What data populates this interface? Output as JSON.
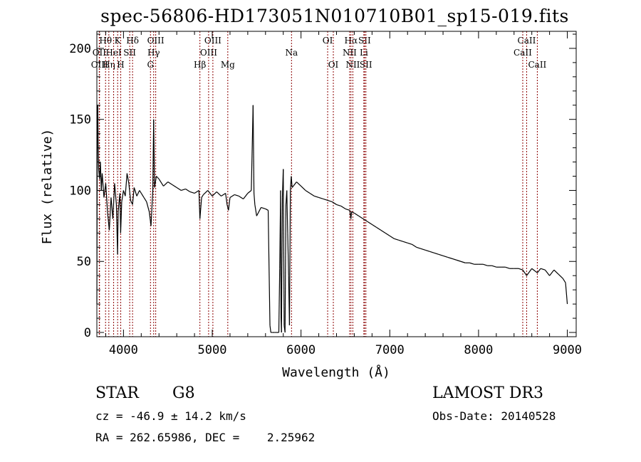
{
  "chart_data": {
    "type": "line",
    "title": "spec-56806-HD173051N010710B01_sp15-019.fits",
    "xlabel": "Wavelength (Å)",
    "ylabel": "Flux (relative)",
    "xlim": [
      3700,
      9100
    ],
    "ylim": [
      -3,
      212
    ],
    "xticks": [
      4000,
      5000,
      6000,
      7000,
      8000,
      9000
    ],
    "yticks": [
      0,
      50,
      100,
      150,
      200
    ],
    "xtick_labels": [
      "4000",
      "5000",
      "6000",
      "7000",
      "8000",
      "9000"
    ],
    "ytick_labels": [
      "0",
      "50",
      "100",
      "150",
      "200"
    ],
    "series": [
      {
        "name": "flux",
        "x": [
          3700,
          3705,
          3710,
          3715,
          3720,
          3730,
          3740,
          3750,
          3760,
          3780,
          3800,
          3820,
          3840,
          3860,
          3880,
          3900,
          3920,
          3933,
          3940,
          3960,
          3968,
          3980,
          4000,
          4020,
          4040,
          4060,
          4080,
          4102,
          4120,
          4150,
          4180,
          4200,
          4230,
          4260,
          4290,
          4310,
          4330,
          4340,
          4350,
          4370,
          4400,
          4450,
          4500,
          4550,
          4600,
          4650,
          4700,
          4750,
          4800,
          4850,
          4861,
          4880,
          4900,
          4950,
          5000,
          5050,
          5100,
          5150,
          5167,
          5183,
          5200,
          5250,
          5300,
          5350,
          5400,
          5440,
          5460,
          5470,
          5480,
          5500,
          5550,
          5600,
          5630,
          5650,
          5660,
          5670,
          5680,
          5700,
          5720,
          5750,
          5760,
          5770,
          5775,
          5780,
          5790,
          5800,
          5810,
          5820,
          5830,
          5840,
          5850,
          5860,
          5870,
          5880,
          5890,
          5900,
          5950,
          6000,
          6050,
          6100,
          6150,
          6200,
          6250,
          6300,
          6350,
          6400,
          6450,
          6500,
          6550,
          6562,
          6570,
          6600,
          6650,
          6700,
          6750,
          6800,
          6850,
          6900,
          6950,
          7000,
          7050,
          7100,
          7150,
          7200,
          7250,
          7300,
          7350,
          7400,
          7450,
          7500,
          7550,
          7600,
          7650,
          7700,
          7750,
          7800,
          7850,
          7900,
          7950,
          8000,
          8050,
          8100,
          8150,
          8200,
          8250,
          8300,
          8350,
          8400,
          8450,
          8498,
          8542,
          8600,
          8662,
          8700,
          8750,
          8800,
          8850,
          8900,
          8950,
          8980,
          9000
        ],
        "values": [
          20,
          150,
          160,
          130,
          115,
          108,
          120,
          100,
          112,
          95,
          105,
          85,
          72,
          95,
          80,
          105,
          90,
          55,
          85,
          98,
          70,
          92,
          100,
          96,
          112,
          105,
          93,
          90,
          102,
          96,
          100,
          98,
          95,
          92,
          85,
          75,
          100,
          150,
          102,
          110,
          108,
          103,
          106,
          104,
          102,
          100,
          101,
          99,
          98,
          100,
          80,
          95,
          97,
          100,
          96,
          99,
          96,
          98,
          90,
          86,
          95,
          97,
          96,
          94,
          98,
          100,
          160,
          98,
          90,
          82,
          88,
          87,
          86,
          5,
          0,
          0,
          0,
          0,
          0,
          0,
          45,
          100,
          10,
          0,
          95,
          115,
          5,
          0,
          90,
          100,
          70,
          40,
          5,
          100,
          110,
          102,
          106,
          103,
          100,
          98,
          96,
          95,
          94,
          93,
          92,
          90,
          89,
          87,
          86,
          80,
          85,
          84,
          82,
          80,
          78,
          76,
          74,
          72,
          70,
          68,
          66,
          65,
          64,
          63,
          62,
          60,
          59,
          58,
          57,
          56,
          55,
          54,
          53,
          52,
          51,
          50,
          49,
          49,
          48,
          48,
          48,
          47,
          47,
          46,
          46,
          46,
          45,
          45,
          45,
          44,
          40,
          45,
          42,
          45,
          44,
          40,
          44,
          41,
          38,
          35,
          20
        ]
      }
    ],
    "lines": [
      {
        "label": "Hθ",
        "x": 3798,
        "row": 0
      },
      {
        "label": "OII",
        "x": 3727,
        "row": 1
      },
      {
        "label": "OIII",
        "x": 3730,
        "row": 2
      },
      {
        "label": "Hη",
        "x": 3835,
        "row": 2
      },
      {
        "label": "HeI",
        "x": 3889,
        "row": 1
      },
      {
        "label": "K",
        "x": 3934,
        "row": 0
      },
      {
        "label": "H",
        "x": 3969,
        "row": 2
      },
      {
        "label": "SII",
        "x": 4070,
        "row": 1
      },
      {
        "label": "Hδ",
        "x": 4102,
        "row": 0
      },
      {
        "label": "OIII",
        "x": 4363,
        "row": 0
      },
      {
        "label": "Hγ",
        "x": 4340,
        "row": 1
      },
      {
        "label": "G",
        "x": 4304,
        "row": 2
      },
      {
        "label": "OIII",
        "x": 5007,
        "row": 0
      },
      {
        "label": "OIII",
        "x": 4959,
        "row": 1
      },
      {
        "label": "Hβ",
        "x": 4861,
        "row": 2
      },
      {
        "label": "Mg",
        "x": 5175,
        "row": 2
      },
      {
        "label": "Na",
        "x": 5893,
        "row": 1
      },
      {
        "label": "OI",
        "x": 6300,
        "row": 0
      },
      {
        "label": "OI",
        "x": 6364,
        "row": 2
      },
      {
        "label": "Hα",
        "x": 6563,
        "row": 0
      },
      {
        "label": "SII",
        "x": 6716,
        "row": 0
      },
      {
        "label": "NII",
        "x": 6548,
        "row": 1
      },
      {
        "label": "Li",
        "x": 6708,
        "row": 1
      },
      {
        "label": "NII",
        "x": 6584,
        "row": 2
      },
      {
        "label": "SII",
        "x": 6731,
        "row": 2
      },
      {
        "label": "CaII",
        "x": 8542,
        "row": 0
      },
      {
        "label": "CaII",
        "x": 8498,
        "row": 1
      },
      {
        "label": "CaII",
        "x": 8662,
        "row": 2
      }
    ]
  },
  "info": {
    "object_class": "STAR",
    "subclass": "G8",
    "survey": "LAMOST DR3",
    "redshift": "cz = -46.9 ± 14.2 km/s",
    "obs_date": "Obs-Date: 20140528",
    "coords": "RA = 262.65986, DEC =    2.25962"
  }
}
